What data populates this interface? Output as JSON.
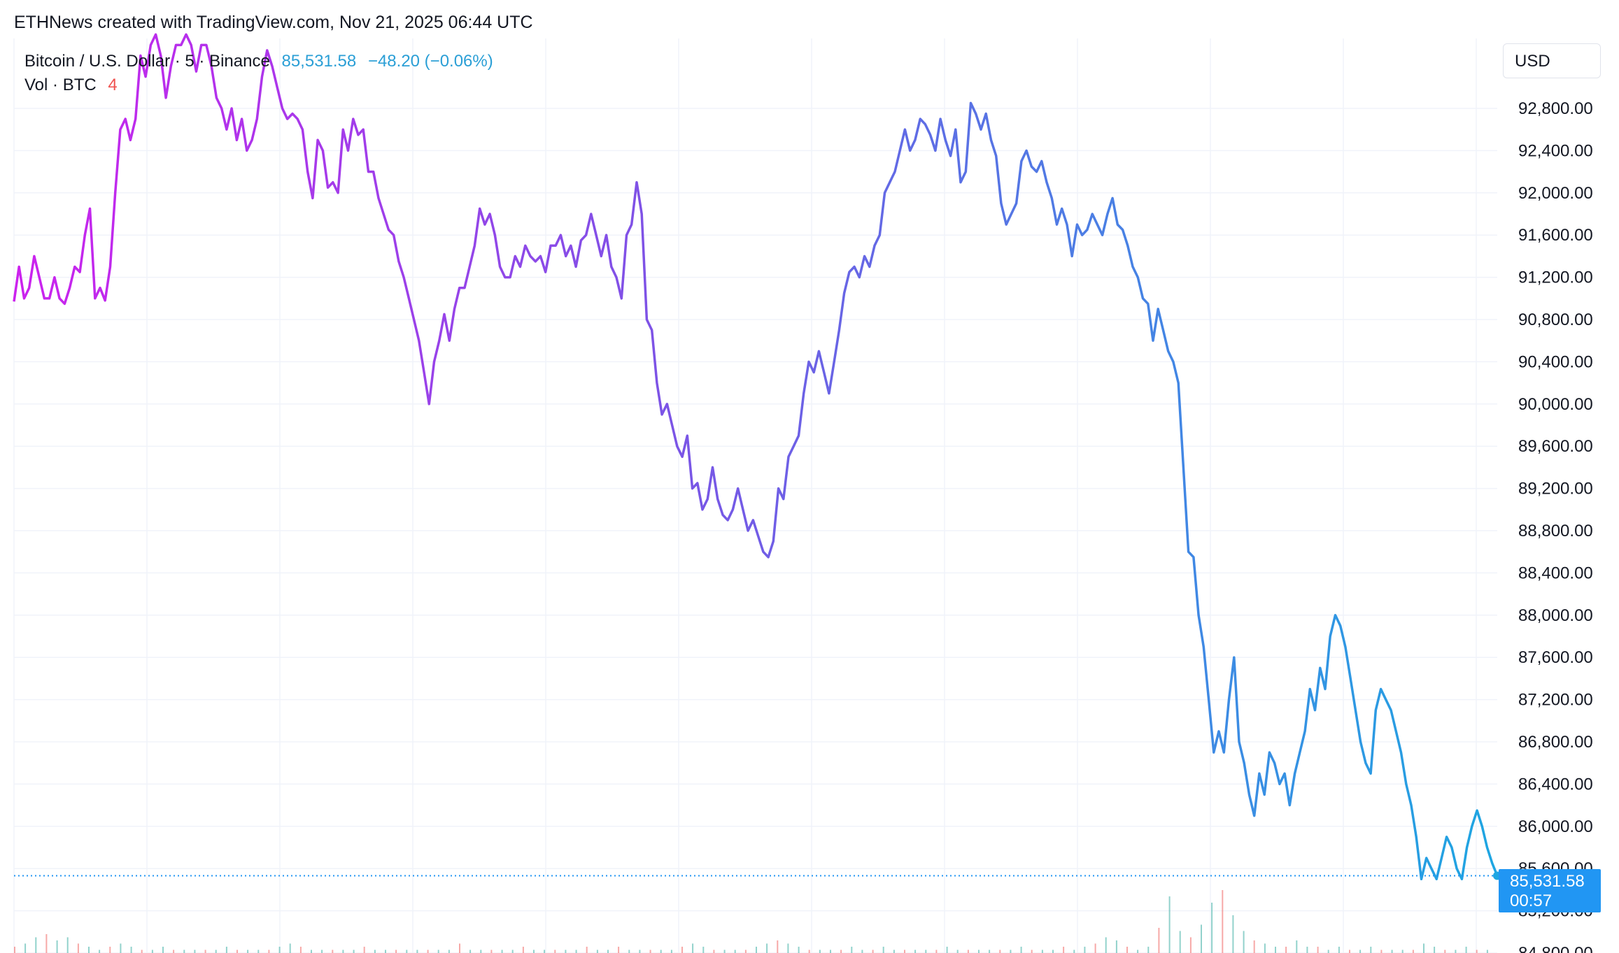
{
  "header": {
    "credit": "ETHNews created with TradingView.com, Nov 21, 2025 06:44 UTC"
  },
  "legend": {
    "symbol": "Bitcoin / U.S. Dollar · 5 · Binance",
    "last_price": "85,531.58",
    "change": "−48.20 (−0.06%)",
    "volume_label": "Vol · BTC",
    "volume_value": "4"
  },
  "currency_selector": {
    "label": "USD"
  },
  "price_label": {
    "price": "85,531.58",
    "countdown": "00:57"
  },
  "colors": {
    "line_start": "#cc22ee",
    "line_mid": "#7a55e6",
    "line_end": "#1ea6e2",
    "last_price_line": "#2196f3",
    "grid": "#f0f3fa",
    "volume_up": "#26a69a",
    "volume_down": "#ef5350"
  },
  "chart_data": {
    "type": "line",
    "title": "Bitcoin / U.S. Dollar · 5 · Binance",
    "xlabel": "",
    "ylabel": "",
    "ylim": [
      84800,
      93500
    ],
    "y_tick_labels": [
      "92,800.00",
      "92,400.00",
      "92,000.00",
      "91,600.00",
      "91,200.00",
      "90,800.00",
      "90,400.00",
      "90,000.00",
      "89,600.00",
      "89,200.00",
      "88,800.00",
      "88,400.00",
      "88,000.00",
      "87,600.00",
      "87,200.00",
      "86,800.00",
      "86,400.00",
      "86,000.00",
      "85,600.00",
      "85,200.00",
      "84,800.00"
    ],
    "grid": true,
    "last_value": 85531.58,
    "series": [
      {
        "values": [
          90970,
          91300,
          91000,
          91100,
          91400,
          91200,
          91000,
          91000,
          91200,
          91000,
          90950,
          91100,
          91300,
          91250,
          91600,
          91850,
          91000,
          91100,
          90980,
          91300,
          92000,
          92600,
          92700,
          92500,
          92700,
          93300,
          93100,
          93400,
          93500,
          93300,
          92900,
          93200,
          93400,
          93400,
          93500,
          93400,
          93150,
          93400,
          93400,
          93200,
          92900,
          92800,
          92600,
          92800,
          92500,
          92700,
          92400,
          92500,
          92700,
          93100,
          93350,
          93200,
          93000,
          92800,
          92700,
          92750,
          92700,
          92600,
          92200,
          91950,
          92500,
          92400,
          92050,
          92100,
          92000,
          92600,
          92400,
          92700,
          92550,
          92600,
          92200,
          92200,
          91950,
          91800,
          91650,
          91600,
          91350,
          91200,
          91000,
          90800,
          90600,
          90300,
          90000,
          90400,
          90600,
          90850,
          90600,
          90900,
          91100,
          91100,
          91300,
          91500,
          91850,
          91700,
          91800,
          91600,
          91300,
          91200,
          91200,
          91400,
          91300,
          91500,
          91400,
          91350,
          91400,
          91250,
          91500,
          91500,
          91600,
          91400,
          91500,
          91300,
          91550,
          91600,
          91800,
          91600,
          91400,
          91600,
          91300,
          91200,
          91000,
          91600,
          91700,
          92100,
          91800,
          90800,
          90700,
          90200,
          89900,
          90000,
          89800,
          89600,
          89500,
          89700,
          89200,
          89250,
          89000,
          89100,
          89400,
          89100,
          88950,
          88900,
          89000,
          89200,
          89000,
          88800,
          88900,
          88750,
          88600,
          88550,
          88700,
          89200,
          89100,
          89500,
          89600,
          89700,
          90100,
          90400,
          90300,
          90500,
          90300,
          90100,
          90400,
          90700,
          91050,
          91250,
          91300,
          91200,
          91400,
          91300,
          91500,
          91600,
          92000,
          92100,
          92200,
          92400,
          92600,
          92400,
          92500,
          92700,
          92650,
          92550,
          92400,
          92700,
          92500,
          92350,
          92600,
          92100,
          92200,
          92850,
          92750,
          92600,
          92750,
          92500,
          92350,
          91900,
          91700,
          91800,
          91900,
          92300,
          92400,
          92250,
          92200,
          92300,
          92100,
          91950,
          91700,
          91850,
          91700,
          91400,
          91700,
          91600,
          91650,
          91800,
          91700,
          91600,
          91800,
          91950,
          91700,
          91650,
          91500,
          91300,
          91200,
          91000,
          90950,
          90600,
          90900,
          90700,
          90500,
          90400,
          90200,
          89400,
          88600,
          88550,
          88000,
          87700,
          87200,
          86700,
          86900,
          86700,
          87200,
          87600,
          86800,
          86600,
          86300,
          86100,
          86500,
          86300,
          86700,
          86600,
          86400,
          86500,
          86200,
          86500,
          86700,
          86900,
          87300,
          87100,
          87500,
          87300,
          87800,
          88000,
          87900,
          87700,
          87400,
          87100,
          86800,
          86600,
          86500,
          87100,
          87300,
          87200,
          87100,
          86900,
          86700,
          86400,
          86200,
          85900,
          85500,
          85700,
          85600,
          85500,
          85700,
          85900,
          85800,
          85600,
          85500,
          85800,
          86000,
          86150,
          86000,
          85800,
          85650,
          85531.58
        ]
      }
    ],
    "volume": {
      "label": "Vol · BTC",
      "bars": [
        2,
        3,
        5,
        6,
        4,
        5,
        3,
        2,
        1,
        2,
        3,
        2,
        1,
        1,
        2,
        1,
        1,
        1,
        1,
        1,
        2,
        1,
        1,
        1,
        1,
        2,
        3,
        2,
        1,
        1,
        1,
        1,
        1,
        2,
        1,
        1,
        1,
        1,
        1,
        1,
        1,
        1,
        3,
        1,
        1,
        1,
        1,
        1,
        2,
        1,
        1,
        1,
        1,
        1,
        2,
        1,
        1,
        2,
        1,
        1,
        1,
        1,
        1,
        2,
        3,
        2,
        1,
        1,
        1,
        1,
        2,
        3,
        4,
        3,
        2,
        1,
        1,
        1,
        1,
        2,
        1,
        1,
        2,
        1,
        1,
        1,
        1,
        1,
        2,
        1,
        1,
        1,
        1,
        1,
        1,
        2,
        1,
        1,
        1,
        2,
        1,
        2,
        3,
        5,
        4,
        2,
        1,
        2,
        8,
        18,
        7,
        5,
        9,
        16,
        20,
        12,
        7,
        4,
        3,
        2,
        2,
        4,
        2,
        2,
        1,
        2,
        1,
        1,
        2,
        1,
        1,
        1,
        1,
        3,
        2,
        1,
        1,
        2,
        1,
        1
      ]
    }
  }
}
